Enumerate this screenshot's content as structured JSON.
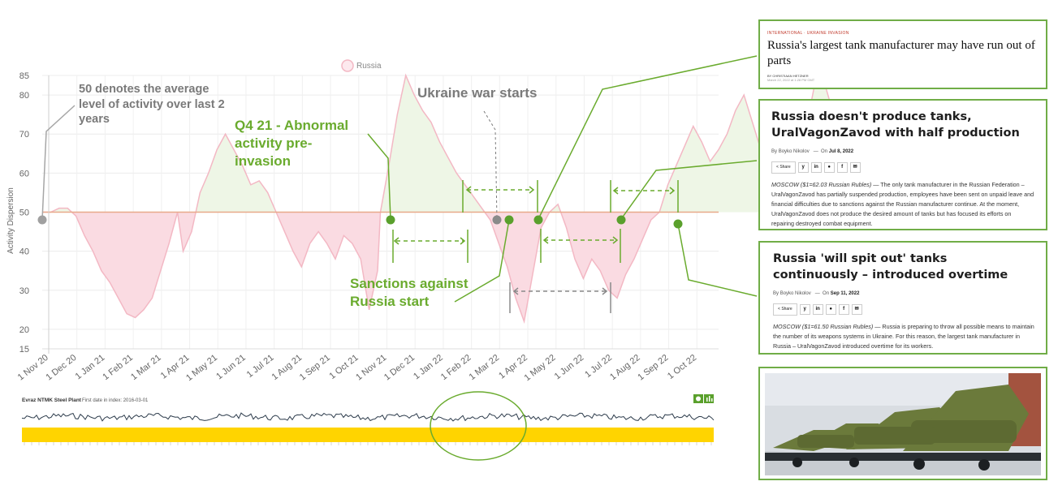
{
  "chart_data": {
    "type": "area",
    "legend": {
      "label": "Russia",
      "placement": "top-center"
    },
    "ylabel": "Activity Dispersion",
    "ylim": [
      15,
      85
    ],
    "y_ticks": [
      20,
      30,
      40,
      50,
      60,
      70,
      80,
      85
    ],
    "baseline": 50,
    "x_ticks": [
      "1 Nov 20",
      "1 Dec 20",
      "1 Jan 21",
      "1 Feb 21",
      "1 Mar 21",
      "1 Apr 21",
      "1 May 21",
      "1 Jun 21",
      "1 Jul 21",
      "1 Aug 21",
      "1 Sep 21",
      "1 Oct 21",
      "1 Nov 21",
      "1 Dec 21",
      "1 Jan 22",
      "1 Feb 22",
      "1 Mar 22",
      "1 Apr 22",
      "1 May 22",
      "1 Jun 22",
      "1 Jul 22",
      "1 Aug 22",
      "1 Sep 22",
      "1 Oct 22"
    ],
    "series": [
      {
        "name": "Russia",
        "points": [
          [
            0,
            50
          ],
          [
            0.3,
            50
          ],
          [
            0.6,
            51
          ],
          [
            0.9,
            51
          ],
          [
            1.2,
            49
          ],
          [
            1.5,
            44
          ],
          [
            1.8,
            40
          ],
          [
            2.1,
            35
          ],
          [
            2.4,
            32
          ],
          [
            2.7,
            28
          ],
          [
            3.0,
            24
          ],
          [
            3.3,
            23
          ],
          [
            3.6,
            25
          ],
          [
            3.9,
            28
          ],
          [
            4.2,
            35
          ],
          [
            4.5,
            42
          ],
          [
            4.8,
            50
          ],
          [
            5.0,
            40
          ],
          [
            5.3,
            45
          ],
          [
            5.6,
            55
          ],
          [
            5.9,
            60
          ],
          [
            6.2,
            66
          ],
          [
            6.5,
            70
          ],
          [
            6.8,
            66
          ],
          [
            7.1,
            62
          ],
          [
            7.4,
            57
          ],
          [
            7.7,
            58
          ],
          [
            8.0,
            55
          ],
          [
            8.3,
            50
          ],
          [
            8.6,
            45
          ],
          [
            8.9,
            40
          ],
          [
            9.2,
            36
          ],
          [
            9.5,
            42
          ],
          [
            9.8,
            45
          ],
          [
            10.1,
            42
          ],
          [
            10.4,
            38
          ],
          [
            10.7,
            44
          ],
          [
            11.0,
            42
          ],
          [
            11.3,
            38
          ],
          [
            11.6,
            25
          ],
          [
            11.9,
            35
          ],
          [
            12.0,
            50
          ],
          [
            12.3,
            62
          ],
          [
            12.6,
            75
          ],
          [
            12.9,
            85
          ],
          [
            13.2,
            80
          ],
          [
            13.5,
            76
          ],
          [
            13.8,
            73
          ],
          [
            14.1,
            68
          ],
          [
            14.4,
            64
          ],
          [
            14.7,
            60
          ],
          [
            15.0,
            57
          ],
          [
            15.3,
            54
          ],
          [
            15.6,
            51
          ],
          [
            15.9,
            48
          ],
          [
            16.2,
            42
          ],
          [
            16.5,
            36
          ],
          [
            16.8,
            28
          ],
          [
            17.1,
            22
          ],
          [
            17.4,
            34
          ],
          [
            17.7,
            46
          ],
          [
            18.0,
            50
          ],
          [
            18.3,
            52
          ],
          [
            18.6,
            46
          ],
          [
            18.9,
            38
          ],
          [
            19.2,
            33
          ],
          [
            19.5,
            38
          ],
          [
            19.8,
            35
          ],
          [
            20.1,
            30
          ],
          [
            20.4,
            28
          ],
          [
            20.7,
            34
          ],
          [
            21.0,
            38
          ],
          [
            21.3,
            43
          ],
          [
            21.6,
            48
          ],
          [
            21.9,
            50
          ],
          [
            22.2,
            57
          ],
          [
            22.5,
            62
          ],
          [
            22.8,
            67
          ],
          [
            23.1,
            72
          ],
          [
            23.4,
            68
          ],
          [
            23.7,
            63
          ],
          [
            24.0,
            66
          ],
          [
            24.3,
            70
          ],
          [
            24.6,
            76
          ],
          [
            24.9,
            80
          ],
          [
            25.2,
            73
          ],
          [
            25.5,
            66
          ],
          [
            25.8,
            60
          ],
          [
            26.0,
            49
          ],
          [
            26.3,
            55
          ],
          [
            26.6,
            62
          ],
          [
            26.9,
            69
          ],
          [
            27.2,
            75
          ],
          [
            27.5,
            86
          ],
          [
            27.8,
            82
          ],
          [
            28.0,
            77
          ]
        ]
      }
    ]
  },
  "annotations": {
    "avg_note": "50 denotes the average level of activity over last 2 years",
    "war": "Ukraine war starts",
    "q4": "Q4 21 - Abnormal activity pre-invasion",
    "sanctions": "Sanctions against Russia start"
  },
  "mini_chart": {
    "title": "Evraz NTMK Steel Plant",
    "first_date": "First date in index: 2016-03-01"
  },
  "cards": {
    "card1": {
      "kicker": "INTERNATIONAL · UKRAINE INVASION",
      "title": "Russia's largest tank manufacturer may have run out of parts",
      "byline": "BY CHRISTIAAN HETZNER",
      "date": "March 22, 2022 at 1:28 PM GMT"
    },
    "card2": {
      "title": "Russia doesn't produce tanks, UralVagonZavod with half production",
      "by": "By",
      "author": "Boyko Nikolov",
      "on": "On",
      "date": "Jul 8, 2022",
      "share": "Share",
      "lead": "MOSCOW ($1=62.03 Russian Rubles)",
      "body": " — The only tank manufacturer in the Russian Federation – UralVagonZavod has partially suspended production, employees have been sent on unpaid leave and financial difficulties due to sanctions against the Russian manufacturer continue. At the moment, UralVagonZavod does not produce the desired amount of tanks but has focused its efforts on repairing destroyed combat equipment."
    },
    "card3": {
      "title": "Russia 'will spit out' tanks continuously – introduced overtime",
      "by": "By",
      "author": "Boyko Nikolov",
      "on": "On",
      "date": "Sep 11, 2022",
      "share": "Share",
      "lead": "MOSCOW ($1=61.50 Russian Rubles)",
      "body": " — Russia is preparing to throw all possible means to maintain the number of its weapons systems in Ukraine. For this reason, the largest tank manufacturer in Russia – UralVagonZavod introduced overtime for its workers."
    }
  },
  "colors": {
    "above": "#eef6e6",
    "below": "#fadbe2",
    "line": "#f3b8c4",
    "baseline": "#e8a98a",
    "accent_green": "#6aab2e",
    "gray": "#8a8a8a",
    "mini_bar": "#ffd400"
  }
}
